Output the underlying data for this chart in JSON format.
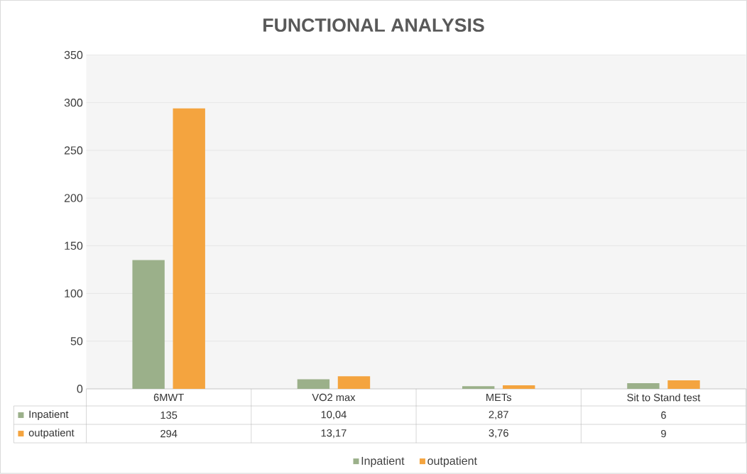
{
  "chart_data": {
    "type": "bar",
    "title": "FUNCTIONAL ANALYSIS",
    "categories": [
      "6MWT",
      "VO2 max",
      "METs",
      "Sit to Stand test"
    ],
    "series": [
      {
        "name": "Inpatient",
        "color": "#9bb08a",
        "values": [
          135,
          10.04,
          2.87,
          6
        ],
        "value_labels": [
          "135",
          "10,04",
          "2,87",
          "6"
        ]
      },
      {
        "name": "outpatient",
        "color": "#f4a43f",
        "values": [
          294,
          13.17,
          3.76,
          9
        ],
        "value_labels": [
          "294",
          "13,17",
          "3,76",
          "9"
        ]
      }
    ],
    "ylim": [
      0,
      350
    ],
    "yticks": [
      0,
      50,
      100,
      150,
      200,
      250,
      300,
      350
    ],
    "grid": true,
    "legend": "bottom"
  }
}
